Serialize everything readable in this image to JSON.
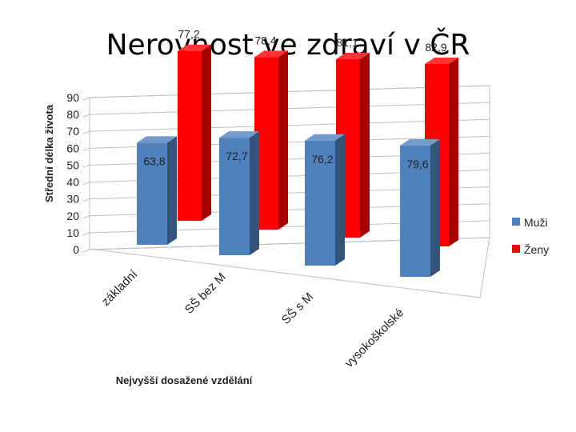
{
  "slide": {
    "title": "Nerovnost ve zdraví v ČR"
  },
  "chart_data": {
    "type": "bar",
    "title": "",
    "xlabel": "Nejvyšší dosažené vzdělání",
    "ylabel": "Střední délka života",
    "categories": [
      "základní",
      "SŠ bez M",
      "SŠ  s M",
      "vysokoškolské"
    ],
    "series": [
      {
        "name": "Muži",
        "values": [
          63.8,
          72.7,
          76.2,
          79.6
        ],
        "color": "#4f81bd",
        "labels": [
          "63,8",
          "72,7",
          "76,2",
          "79,6"
        ]
      },
      {
        "name": "Ženy",
        "values": [
          77.2,
          78.4,
          81.1,
          82.9
        ],
        "color": "#ff0000",
        "labels": [
          "77,2",
          "78,4",
          "81,1",
          "82,9"
        ]
      }
    ],
    "ylim": [
      0,
      90
    ],
    "yticks": [
      0,
      10,
      20,
      30,
      40,
      50,
      60,
      70,
      80,
      90
    ],
    "grid": true,
    "legend": "right",
    "style": "3d-column"
  }
}
